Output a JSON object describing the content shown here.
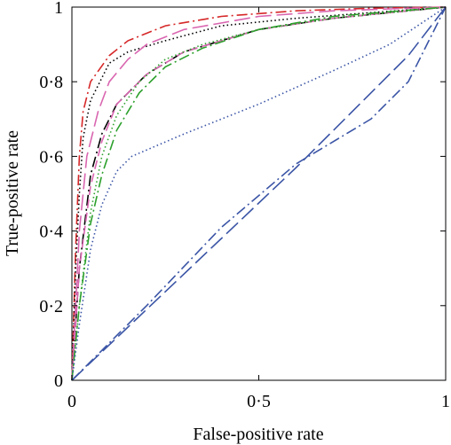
{
  "chart_data": {
    "type": "line",
    "title": "",
    "xlabel": "False-positive rate",
    "ylabel": "True-positive rate",
    "xlim": [
      0,
      1
    ],
    "ylim": [
      0,
      1
    ],
    "xticks": [
      0,
      0.5,
      1
    ],
    "xtick_labels": [
      "0",
      "0·5",
      "1"
    ],
    "yticks": [
      0,
      0.2,
      0.4,
      0.6,
      0.8,
      1
    ],
    "ytick_labels": [
      "0",
      "0·2",
      "0·4",
      "0·6",
      "0·8",
      "1"
    ],
    "grid": false,
    "series": [
      {
        "color": "#d62728",
        "dash": "dashdot",
        "points": [
          [
            0,
            0
          ],
          [
            0.01,
            0.35
          ],
          [
            0.02,
            0.6
          ],
          [
            0.03,
            0.72
          ],
          [
            0.05,
            0.8
          ],
          [
            0.1,
            0.87
          ],
          [
            0.15,
            0.91
          ],
          [
            0.25,
            0.95
          ],
          [
            0.4,
            0.975
          ],
          [
            0.6,
            0.99
          ],
          [
            0.8,
            0.997
          ],
          [
            1,
            1
          ]
        ]
      },
      {
        "color": "#000000",
        "dash": "dotted",
        "points": [
          [
            0,
            0
          ],
          [
            0.01,
            0.3
          ],
          [
            0.02,
            0.5
          ],
          [
            0.03,
            0.65
          ],
          [
            0.05,
            0.75
          ],
          [
            0.1,
            0.85
          ],
          [
            0.15,
            0.88
          ],
          [
            0.25,
            0.91
          ],
          [
            0.4,
            0.95
          ],
          [
            0.6,
            0.97
          ],
          [
            0.8,
            0.985
          ],
          [
            1,
            1
          ]
        ]
      },
      {
        "color": "#000000",
        "dash": "dashdot",
        "points": [
          [
            0,
            0
          ],
          [
            0.02,
            0.3
          ],
          [
            0.05,
            0.55
          ],
          [
            0.08,
            0.66
          ],
          [
            0.12,
            0.74
          ],
          [
            0.2,
            0.82
          ],
          [
            0.3,
            0.88
          ],
          [
            0.5,
            0.94
          ],
          [
            0.7,
            0.97
          ],
          [
            1,
            1
          ]
        ]
      },
      {
        "color": "#d966b0",
        "dash": "longdash",
        "points": [
          [
            0,
            0
          ],
          [
            0.02,
            0.4
          ],
          [
            0.04,
            0.6
          ],
          [
            0.07,
            0.72
          ],
          [
            0.1,
            0.8
          ],
          [
            0.15,
            0.86
          ],
          [
            0.2,
            0.9
          ],
          [
            0.3,
            0.94
          ],
          [
            0.5,
            0.975
          ],
          [
            0.7,
            0.99
          ],
          [
            1,
            1
          ]
        ]
      },
      {
        "color": "#d966b0",
        "dash": "dashed",
        "points": [
          [
            0,
            0
          ],
          [
            0.02,
            0.3
          ],
          [
            0.05,
            0.52
          ],
          [
            0.08,
            0.64
          ],
          [
            0.12,
            0.74
          ],
          [
            0.2,
            0.82
          ],
          [
            0.3,
            0.88
          ],
          [
            0.5,
            0.94
          ],
          [
            0.7,
            0.97
          ],
          [
            1,
            1
          ]
        ]
      },
      {
        "color": "#2ca02c",
        "dash": "dashdot",
        "points": [
          [
            0,
            0
          ],
          [
            0.02,
            0.2
          ],
          [
            0.05,
            0.42
          ],
          [
            0.08,
            0.55
          ],
          [
            0.12,
            0.67
          ],
          [
            0.18,
            0.77
          ],
          [
            0.25,
            0.84
          ],
          [
            0.35,
            0.89
          ],
          [
            0.5,
            0.94
          ],
          [
            0.7,
            0.975
          ],
          [
            1,
            1
          ]
        ]
      },
      {
        "color": "#2ca02c",
        "dash": "dotted",
        "points": [
          [
            0,
            0
          ],
          [
            0.02,
            0.2
          ],
          [
            0.05,
            0.45
          ],
          [
            0.08,
            0.6
          ],
          [
            0.12,
            0.71
          ],
          [
            0.18,
            0.8
          ],
          [
            0.25,
            0.86
          ],
          [
            0.35,
            0.9
          ],
          [
            0.5,
            0.94
          ],
          [
            0.7,
            0.97
          ],
          [
            1,
            1
          ]
        ]
      },
      {
        "color": "#3b55a6",
        "dash": "dotted",
        "points": [
          [
            0,
            0
          ],
          [
            0.02,
            0.15
          ],
          [
            0.05,
            0.35
          ],
          [
            0.08,
            0.47
          ],
          [
            0.12,
            0.56
          ],
          [
            0.16,
            0.6
          ],
          [
            0.3,
            0.66
          ],
          [
            0.5,
            0.74
          ],
          [
            0.7,
            0.83
          ],
          [
            0.85,
            0.9
          ],
          [
            1,
            1
          ]
        ]
      },
      {
        "color": "#3b55a6",
        "dash": "longdash",
        "points": [
          [
            0,
            0
          ],
          [
            0.2,
            0.19
          ],
          [
            0.4,
            0.38
          ],
          [
            0.6,
            0.57
          ],
          [
            0.8,
            0.77
          ],
          [
            0.9,
            0.87
          ],
          [
            1,
            1
          ]
        ]
      },
      {
        "color": "#3b55a6",
        "dash": "dashdot",
        "points": [
          [
            0,
            0
          ],
          [
            0.2,
            0.2
          ],
          [
            0.4,
            0.41
          ],
          [
            0.6,
            0.58
          ],
          [
            0.8,
            0.7
          ],
          [
            0.9,
            0.8
          ],
          [
            1,
            1
          ]
        ]
      }
    ]
  }
}
